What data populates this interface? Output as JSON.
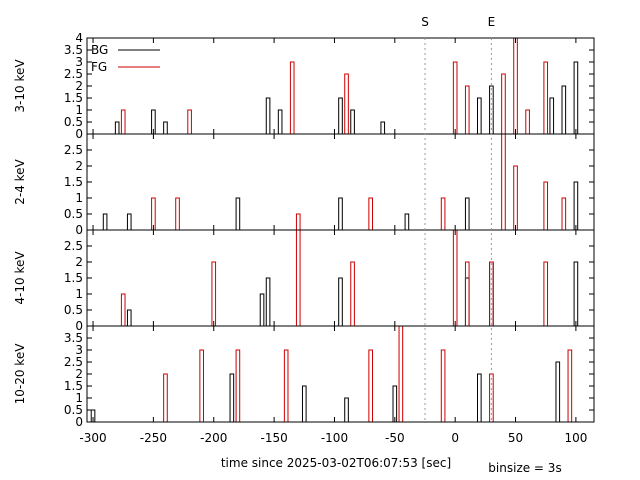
{
  "chart_data": {
    "type": "line",
    "xlabel": "time since 2025-03-02T06:07:53 [sec]",
    "binsize_note": "binsize = 3s",
    "xlim": [
      -305,
      115
    ],
    "x_ticks": [
      -300,
      -250,
      -200,
      -150,
      -100,
      -50,
      0,
      50,
      100
    ],
    "markers": [
      {
        "label": "S",
        "x": -25
      },
      {
        "label": "E",
        "x": 30
      }
    ],
    "colors": {
      "BG": "#000000",
      "FG": "#cc0000",
      "marker": "#999999"
    },
    "legend": {
      "placement": "top-left",
      "entries": [
        "BG",
        "FG"
      ]
    },
    "panels": [
      {
        "ylabel": "3-10 keV",
        "ylim": [
          0,
          4
        ],
        "y_ticks": [
          0,
          0.5,
          1,
          1.5,
          2,
          2.5,
          3,
          3.5,
          4
        ],
        "series": [
          {
            "name": "BG",
            "bins": [
              {
                "x": -280,
                "y": 0.5
              },
              {
                "x": -250,
                "y": 1
              },
              {
                "x": -240,
                "y": 0.5
              },
              {
                "x": -155,
                "y": 1.5
              },
              {
                "x": -145,
                "y": 1
              },
              {
                "x": -95,
                "y": 1.5
              },
              {
                "x": -85,
                "y": 1
              },
              {
                "x": -60,
                "y": 0.5
              },
              {
                "x": 20,
                "y": 1.5
              },
              {
                "x": 30,
                "y": 2
              },
              {
                "x": 80,
                "y": 1.5
              },
              {
                "x": 90,
                "y": 2
              },
              {
                "x": 100,
                "y": 3
              }
            ]
          },
          {
            "name": "FG",
            "bins": [
              {
                "x": -275,
                "y": 1
              },
              {
                "x": -220,
                "y": 1
              },
              {
                "x": -135,
                "y": 3
              },
              {
                "x": -90,
                "y": 2.5
              },
              {
                "x": 0,
                "y": 3
              },
              {
                "x": 10,
                "y": 2
              },
              {
                "x": 40,
                "y": 2.5
              },
              {
                "x": 50,
                "y": 4
              },
              {
                "x": 60,
                "y": 1
              },
              {
                "x": 75,
                "y": 3
              }
            ]
          }
        ]
      },
      {
        "ylabel": "2-4 keV",
        "ylim": [
          0,
          3
        ],
        "y_ticks": [
          0,
          0.5,
          1,
          1.5,
          2,
          2.5
        ],
        "series": [
          {
            "name": "BG",
            "bins": [
              {
                "x": -290,
                "y": 0.5
              },
              {
                "x": -270,
                "y": 0.5
              },
              {
                "x": -180,
                "y": 1
              },
              {
                "x": -95,
                "y": 1
              },
              {
                "x": -40,
                "y": 0.5
              },
              {
                "x": 10,
                "y": 1
              },
              {
                "x": 100,
                "y": 1.5
              }
            ]
          },
          {
            "name": "FG",
            "bins": [
              {
                "x": -250,
                "y": 1
              },
              {
                "x": -230,
                "y": 1
              },
              {
                "x": -130,
                "y": 0.5
              },
              {
                "x": -70,
                "y": 1
              },
              {
                "x": -10,
                "y": 1
              },
              {
                "x": 40,
                "y": 3
              },
              {
                "x": 50,
                "y": 2
              },
              {
                "x": 75,
                "y": 1.5
              },
              {
                "x": 90,
                "y": 1
              }
            ]
          }
        ]
      },
      {
        "ylabel": "4-10 keV",
        "ylim": [
          0,
          3
        ],
        "y_ticks": [
          0,
          0.5,
          1,
          1.5,
          2,
          2.5
        ],
        "series": [
          {
            "name": "BG",
            "bins": [
              {
                "x": -270,
                "y": 0.5
              },
              {
                "x": -160,
                "y": 1
              },
              {
                "x": -155,
                "y": 1.5
              },
              {
                "x": -95,
                "y": 1.5
              },
              {
                "x": 10,
                "y": 1.5
              },
              {
                "x": 30,
                "y": 2
              },
              {
                "x": 100,
                "y": 2
              }
            ]
          },
          {
            "name": "FG",
            "bins": [
              {
                "x": -275,
                "y": 1
              },
              {
                "x": -200,
                "y": 2
              },
              {
                "x": -130,
                "y": 3
              },
              {
                "x": -85,
                "y": 2
              },
              {
                "x": 0,
                "y": 3
              },
              {
                "x": 10,
                "y": 2
              },
              {
                "x": 30,
                "y": 2
              },
              {
                "x": 75,
                "y": 2
              }
            ]
          }
        ]
      },
      {
        "ylabel": "10-20 keV",
        "ylim": [
          0,
          4
        ],
        "y_ticks": [
          0,
          0.5,
          1,
          1.5,
          2,
          2.5,
          3,
          3.5
        ],
        "series": [
          {
            "name": "BG",
            "bins": [
              {
                "x": -300,
                "y": 0.5
              },
              {
                "x": -185,
                "y": 2
              },
              {
                "x": -125,
                "y": 1.5
              },
              {
                "x": -90,
                "y": 1
              },
              {
                "x": -50,
                "y": 1.5
              },
              {
                "x": 20,
                "y": 2
              },
              {
                "x": 85,
                "y": 2.5
              }
            ]
          },
          {
            "name": "FG",
            "bins": [
              {
                "x": -240,
                "y": 2
              },
              {
                "x": -210,
                "y": 3
              },
              {
                "x": -180,
                "y": 3
              },
              {
                "x": -140,
                "y": 3
              },
              {
                "x": -70,
                "y": 3
              },
              {
                "x": -45,
                "y": 4
              },
              {
                "x": -10,
                "y": 3
              },
              {
                "x": 30,
                "y": 2
              },
              {
                "x": 95,
                "y": 3
              }
            ]
          }
        ]
      }
    ]
  }
}
